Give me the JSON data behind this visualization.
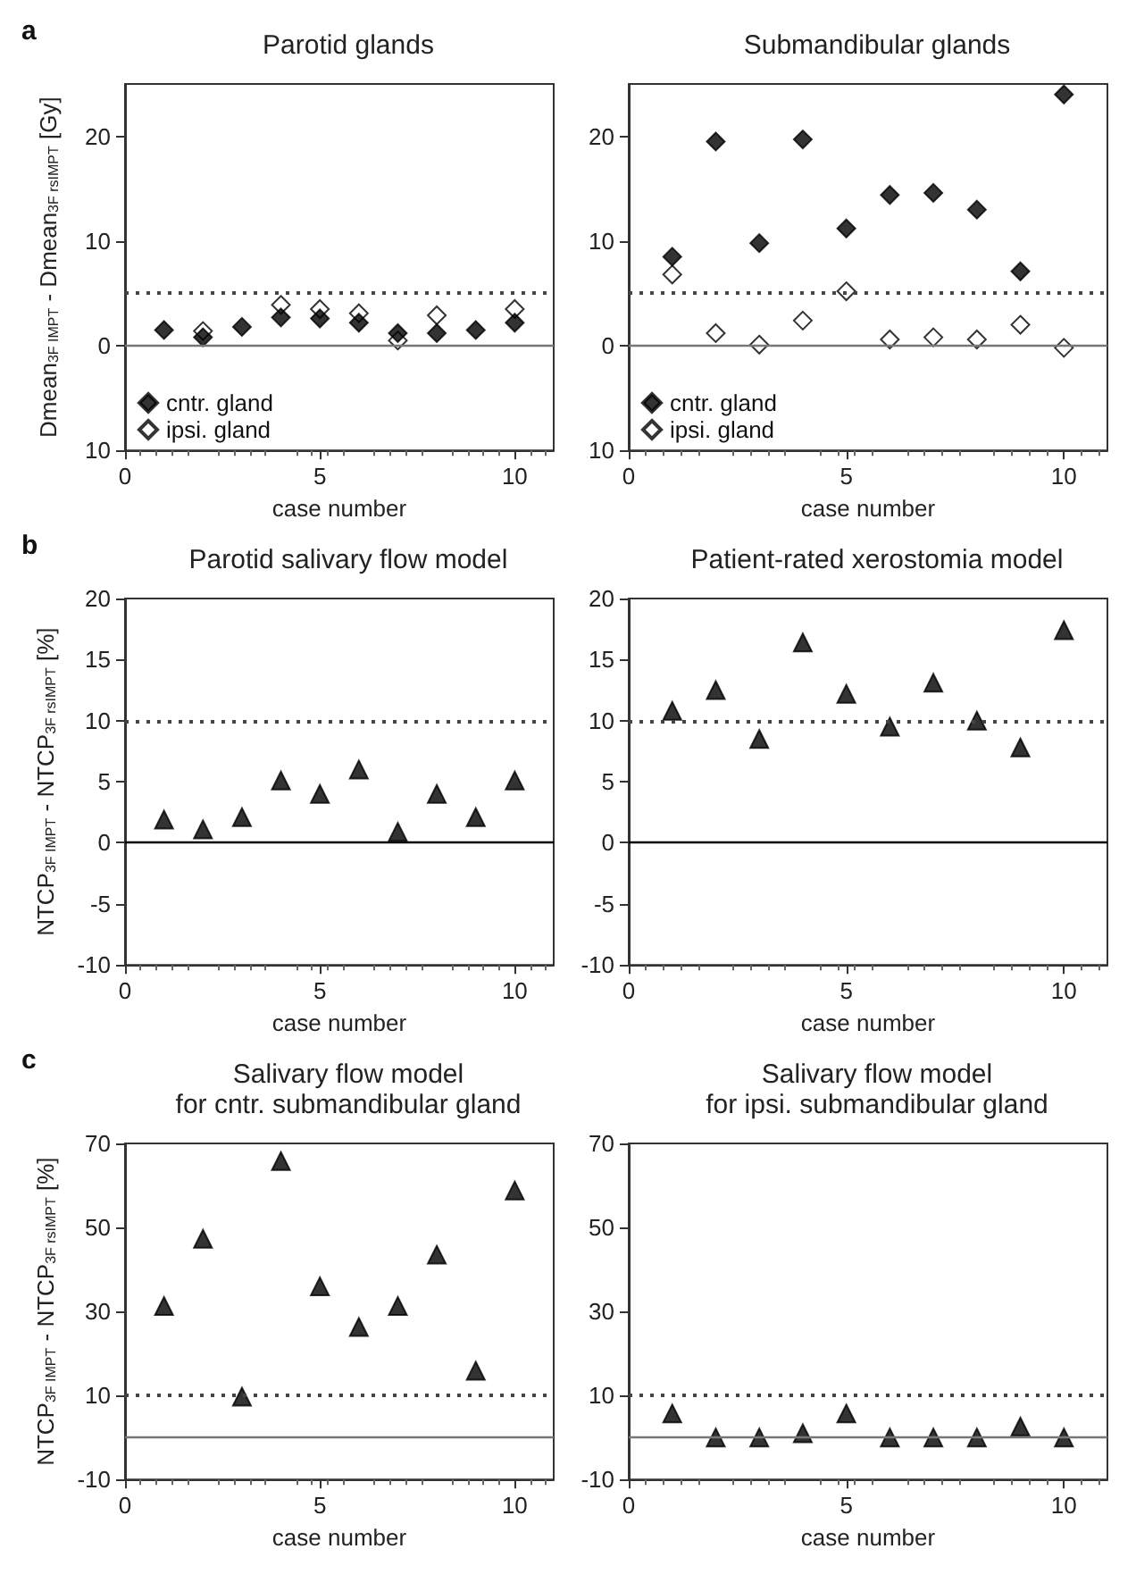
{
  "chart_data": [
    {
      "type": "scatter",
      "title": "Parotid glands",
      "annotations": [
        "a"
      ],
      "xlabel": "case number",
      "ylabel": "Dmean$_{3F IMPT}$ - Dmean$_{3F rsIMPT}$ [Gy]",
      "x": [
        1,
        2,
        3,
        4,
        5,
        6,
        7,
        8,
        9,
        10
      ],
      "xlim": [
        0,
        11
      ],
      "xticks": [
        0,
        5,
        10
      ],
      "ylim": [
        -10,
        25
      ],
      "yticks": [
        {
          "value": -10,
          "label": "10"
        },
        0,
        10,
        20
      ],
      "marker": "diamond",
      "legend": "bottom left",
      "grid": false,
      "series": [
        {
          "name": "cntr. gland",
          "color": "#000000",
          "values": [
            1.5,
            0.8,
            1.8,
            2.7,
            2.6,
            2.2,
            1.2,
            1.2,
            1.5,
            2.2
          ]
        },
        {
          "name": "ipsi. gland",
          "color": "#ffffff",
          "values": [
            null,
            1.4,
            null,
            3.9,
            3.5,
            3.1,
            0.5,
            2.9,
            null,
            3.5
          ]
        }
      ],
      "ref_lines": [
        {
          "axis": "y",
          "value": 5,
          "line_style": "dotted",
          "color": "#444444"
        },
        {
          "axis": "y",
          "value": 0,
          "line_style": "solid",
          "color": "#777777"
        }
      ]
    },
    {
      "type": "scatter",
      "title": "Submandibular glands",
      "xlabel": "case number",
      "x": [
        1,
        2,
        3,
        4,
        5,
        6,
        7,
        8,
        9,
        10
      ],
      "xlim": [
        0,
        11
      ],
      "xticks": [
        0,
        5,
        10
      ],
      "ylim": [
        -10,
        25
      ],
      "yticks": [
        {
          "value": -10,
          "label": "10"
        },
        0,
        10,
        20
      ],
      "marker": "diamond",
      "legend": "bottom left",
      "grid": false,
      "series": [
        {
          "name": "cntr. gland",
          "color": "#000000",
          "values": [
            8.5,
            19.5,
            9.8,
            19.7,
            11.2,
            14.4,
            14.6,
            13,
            7.1,
            24
          ]
        },
        {
          "name": "ipsi. gland",
          "color": "#ffffff",
          "values": [
            6.8,
            1.2,
            0.1,
            2.4,
            5.2,
            0.6,
            0.8,
            0.6,
            2,
            -0.2
          ]
        }
      ],
      "ref_lines": [
        {
          "axis": "y",
          "value": 5,
          "line_style": "dotted",
          "color": "#444444"
        },
        {
          "axis": "y",
          "value": 0,
          "line_style": "solid",
          "color": "#777777"
        }
      ]
    },
    {
      "type": "scatter",
      "title": "Parotid salivary flow model",
      "annotations": [
        "b"
      ],
      "xlabel": "case number",
      "ylabel": "NTCP$_{3F IMPT}$ - NTCP$_{3F rsIMPT}$ [%]",
      "x": [
        1,
        2,
        3,
        4,
        5,
        6,
        7,
        8,
        9,
        10
      ],
      "xlim": [
        0,
        11
      ],
      "xticks": [
        0,
        5,
        10
      ],
      "ylim": [
        -10,
        20
      ],
      "yticks": [
        -10,
        -5,
        0,
        5,
        10,
        15,
        20
      ],
      "marker": "triangle",
      "grid": false,
      "series": [
        {
          "color": "#000000",
          "values": [
            1.9,
            1.1,
            2.1,
            5.1,
            4,
            6,
            0.9,
            4,
            2.1,
            5.1
          ]
        }
      ],
      "ref_lines": [
        {
          "axis": "y",
          "value": 10,
          "line_style": "dotted",
          "color": "#444444"
        },
        {
          "axis": "y",
          "value": 0,
          "line_style": "solid",
          "color": "#000000"
        }
      ]
    },
    {
      "type": "scatter",
      "title": "Patient-rated xerostomia model",
      "xlabel": "case number",
      "x": [
        1,
        2,
        3,
        4,
        5,
        6,
        7,
        8,
        9,
        10
      ],
      "xlim": [
        0,
        11
      ],
      "xticks": [
        0,
        5,
        10
      ],
      "ylim": [
        -10,
        20
      ],
      "yticks": [
        -10,
        -5,
        0,
        5,
        10,
        15,
        20
      ],
      "marker": "triangle",
      "grid": false,
      "series": [
        {
          "color": "#000000",
          "values": [
            10.8,
            12.5,
            8.5,
            16.4,
            12.2,
            9.5,
            13.1,
            10,
            7.8,
            17.4
          ]
        }
      ],
      "ref_lines": [
        {
          "axis": "y",
          "value": 10,
          "line_style": "dotted",
          "color": "#444444"
        },
        {
          "axis": "y",
          "value": 0,
          "line_style": "solid",
          "color": "#000000"
        }
      ]
    },
    {
      "type": "scatter",
      "title": "Salivary flow model\nfor cntr. submandibular gland",
      "annotations": [
        "c"
      ],
      "xlabel": "case number",
      "ylabel": "NTCP$_{3F IMPT}$ - NTCP$_{3F rsIMPT}$ [%]",
      "x": [
        1,
        2,
        3,
        4,
        5,
        6,
        7,
        8,
        9,
        10
      ],
      "xlim": [
        0,
        11
      ],
      "xticks": [
        0,
        5,
        10
      ],
      "ylim": [
        -10,
        70
      ],
      "yticks": [
        -10,
        10,
        30,
        50,
        70
      ],
      "marker": "triangle",
      "grid": false,
      "series": [
        {
          "color": "#000000",
          "values": [
            31.3,
            47.3,
            9.7,
            65.8,
            36,
            26.3,
            31.3,
            43.5,
            15.9,
            58.8
          ]
        }
      ],
      "ref_lines": [
        {
          "axis": "y",
          "value": 10,
          "line_style": "dotted",
          "color": "#444444"
        },
        {
          "axis": "y",
          "value": 0,
          "line_style": "solid",
          "color": "#777777"
        }
      ]
    },
    {
      "type": "scatter",
      "title": "Salivary flow model\nfor ipsi. submandibular gland",
      "xlabel": "case number",
      "x": [
        1,
        2,
        3,
        4,
        5,
        6,
        7,
        8,
        9,
        10
      ],
      "xlim": [
        0,
        11
      ],
      "xticks": [
        0,
        5,
        10
      ],
      "ylim": [
        -10,
        70
      ],
      "yticks": [
        -10,
        10,
        30,
        50,
        70
      ],
      "marker": "triangle",
      "grid": false,
      "series": [
        {
          "color": "#000000",
          "values": [
            5.7,
            0,
            0,
            1,
            5.7,
            0,
            0,
            0,
            2.6,
            0
          ]
        }
      ],
      "ref_lines": [
        {
          "axis": "y",
          "value": 10,
          "line_style": "dotted",
          "color": "#444444"
        },
        {
          "axis": "y",
          "value": 0,
          "line_style": "solid",
          "color": "#777777"
        }
      ]
    }
  ]
}
